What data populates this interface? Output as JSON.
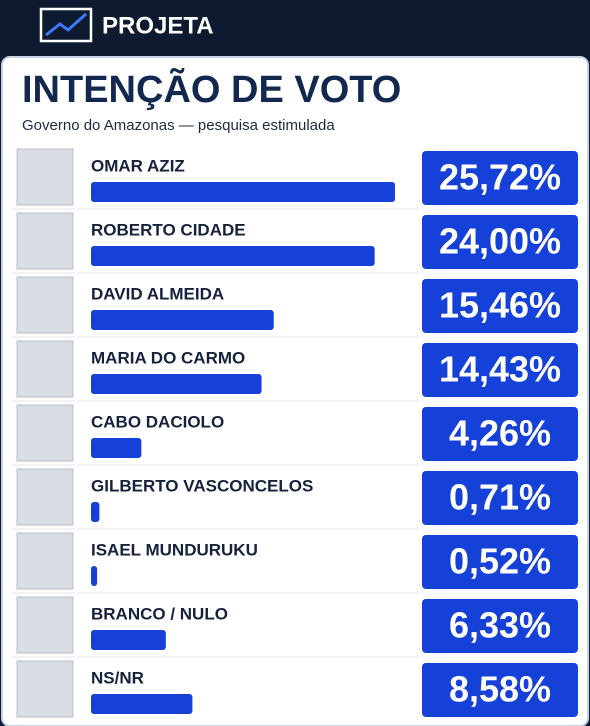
{
  "brand": "PROJETA",
  "chart_data": {
    "type": "bar",
    "orientation": "horizontal",
    "title": "INTENÇÃO DE VOTO",
    "subtitle": "Governo do Amazonas — pesquisa estimulada",
    "categories": [
      "OMAR AZIZ",
      "ROBERTO CIDADE",
      "DAVID ALMEIDA",
      "MARIA DO CARMO",
      "CABO DACIOLO",
      "GILBERTO VASCONCELOS",
      "ISAEL MUNDURUKU",
      "BRANCO / NULO",
      "NS/NR"
    ],
    "values": [
      25.72,
      24.0,
      15.46,
      14.43,
      4.26,
      0.71,
      0.52,
      6.33,
      8.58
    ],
    "value_labels": [
      "25,72%",
      "24,00%",
      "15,46%",
      "14,43%",
      "4,26%",
      "0,71%",
      "0,52%",
      "6,33%",
      "8,58%"
    ],
    "color": "#1541d8"
  }
}
